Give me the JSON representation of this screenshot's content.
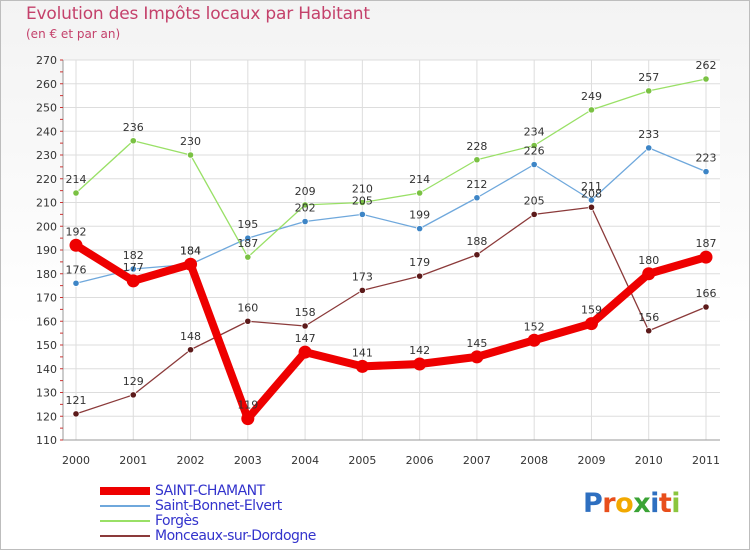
{
  "title": "Evolution des Impôts locaux par Habitant",
  "subtitle": "(en € et par an)",
  "logo": {
    "text": "Proxiti",
    "letter_colors": [
      "#2e6fc0",
      "#e84e1b",
      "#f2a900",
      "#3aa335",
      "#2e6fc0",
      "#e84e1b",
      "#8bc63e"
    ]
  },
  "chart_data": {
    "type": "line",
    "title": "Evolution des Impôts locaux par Habitant",
    "subtitle": "(en € et par an)",
    "x": [
      "2000",
      "2001",
      "2002",
      "2003",
      "2004",
      "2005",
      "2006",
      "2007",
      "2008",
      "2009",
      "2010",
      "2011"
    ],
    "ylim": [
      110,
      270
    ],
    "yticks": [
      110,
      120,
      130,
      140,
      150,
      160,
      170,
      180,
      190,
      200,
      210,
      220,
      230,
      240,
      250,
      260,
      270
    ],
    "grid": true,
    "legend_position": "bottom-left",
    "series": [
      {
        "name": "SAINT-CHAMANT",
        "color": "#ee0000",
        "marker": "#ee0000",
        "values": [
          192,
          177,
          184,
          119,
          147,
          141,
          142,
          145,
          152,
          159,
          180,
          187
        ]
      },
      {
        "name": "Saint-Bonnet-Elvert",
        "color": "#6fa8dc",
        "marker": "#3d85c6",
        "values": [
          176,
          182,
          184,
          195,
          202,
          205,
          199,
          212,
          226,
          211,
          233,
          223
        ]
      },
      {
        "name": "Forgès",
        "color": "#99e066",
        "marker": "#7ac143",
        "values": [
          214,
          236,
          230,
          187,
          209,
          210,
          214,
          228,
          234,
          249,
          257,
          262
        ]
      },
      {
        "name": "Monceaux-sur-Dordogne",
        "color": "#8b3a3a",
        "marker": "#5c1a1a",
        "values": [
          121,
          129,
          148,
          160,
          158,
          173,
          179,
          188,
          205,
          208,
          156,
          166
        ]
      }
    ]
  }
}
